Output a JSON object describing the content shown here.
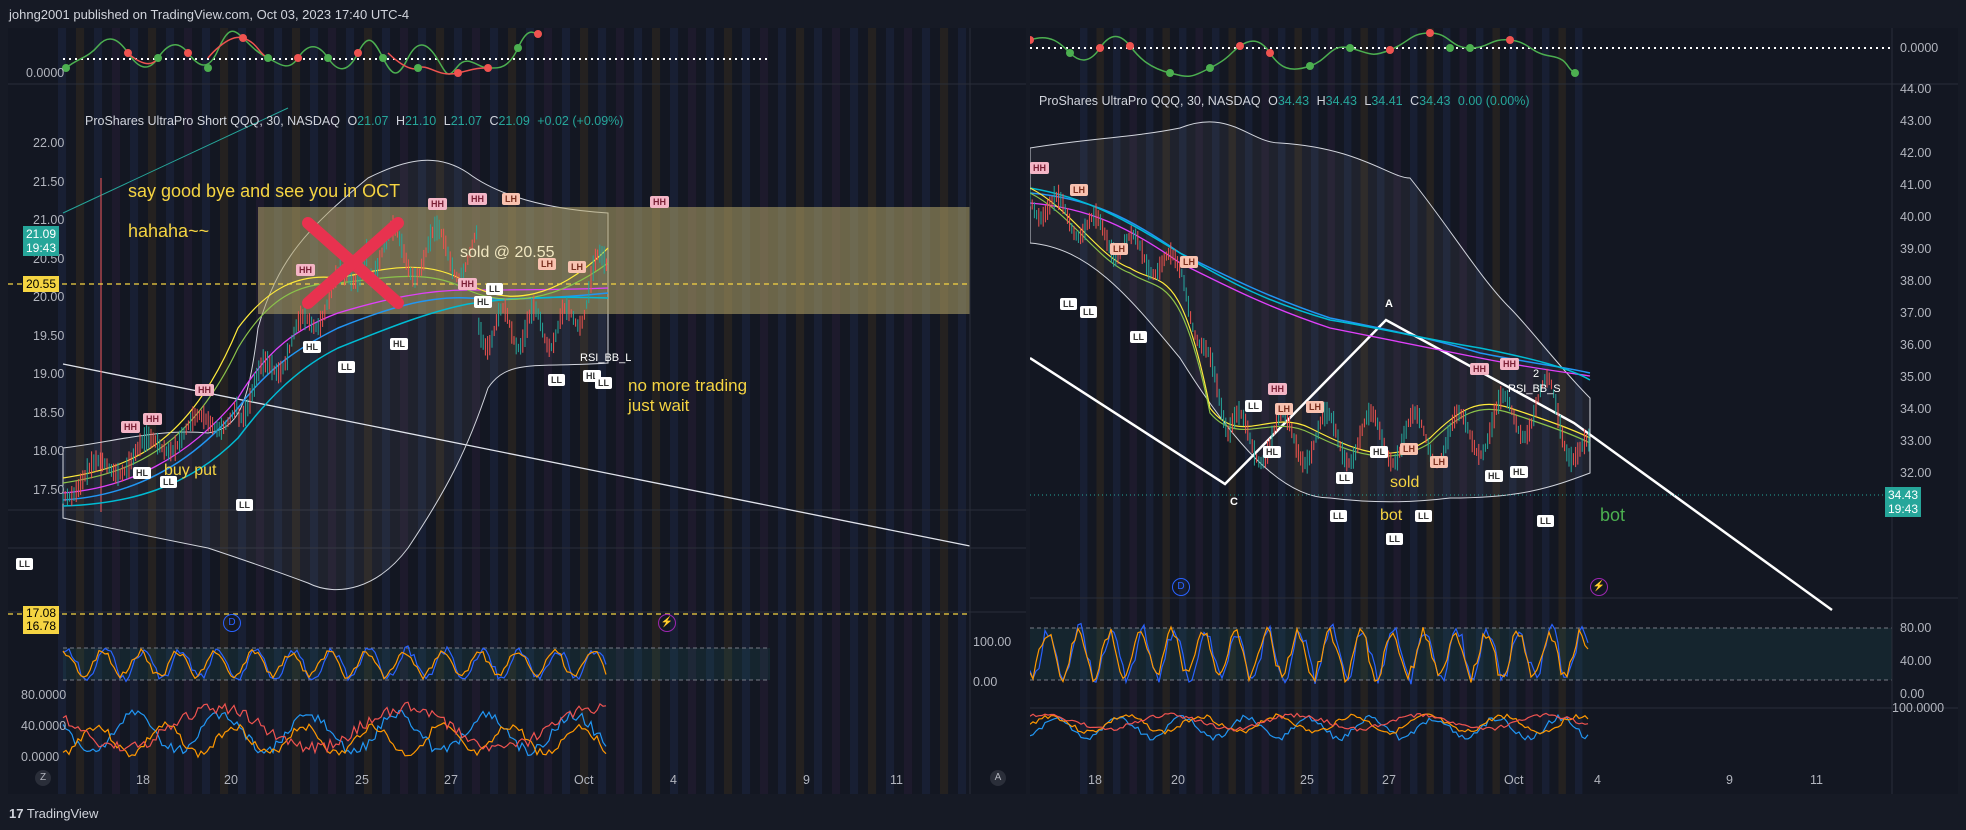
{
  "header": {
    "published": "johng2001 published on TradingView.com, Oct 03, 2023 17:40 UTC-4"
  },
  "footer": {
    "brand": "TradingView",
    "logo_glyph": "17"
  },
  "left": {
    "legend": {
      "name": "ProShares UltraPro Short QQQ, 30, NASDAQ",
      "o_k": "O",
      "o": "21.07",
      "h_k": "H",
      "h": "21.10",
      "l_k": "L",
      "l": "21.07",
      "c_k": "C",
      "c": "21.09",
      "chg": "+0.02 (+0.09%)"
    },
    "osc_zero": "0.0000",
    "price_ticks": [
      "22.00",
      "21.50",
      "21.00",
      "20.50",
      "20.00",
      "19.50",
      "19.00",
      "18.50",
      "18.00",
      "17.50"
    ],
    "last_price": "21.09",
    "last_time": "19:43",
    "line_label": "20.55",
    "low_label_1": "17.08",
    "low_label_2": "16.78",
    "stoch_ticks": [
      "100.00",
      "0.00"
    ],
    "rsi_ticks": [
      "80.0000",
      "40.0000",
      "0.0000"
    ],
    "x_labels": [
      "18",
      "20",
      "25",
      "27",
      "Oct",
      "4",
      "9",
      "11"
    ],
    "notes": {
      "goodbye": "say good bye and see you in OCT",
      "hahaha": "hahaha~~",
      "sold": "sold @ 20.55",
      "buy_put": "buy put",
      "no_more": "no more trading",
      "just_wait": "just wait",
      "rsi_bb": "RSI_BB_L"
    },
    "icons": {
      "z": "Z",
      "a": "A",
      "d": "D",
      "bolt": "⚡"
    },
    "pivots": {
      "hh": "HH",
      "lh": "LH",
      "ll": "LL",
      "hl": "HL"
    }
  },
  "right": {
    "legend": {
      "name": "ProShares UltraPro QQQ, 30, NASDAQ",
      "o_k": "O",
      "o": "34.43",
      "h_k": "H",
      "h": "34.43",
      "l_k": "L",
      "l": "34.41",
      "c_k": "C",
      "c": "34.43",
      "chg": "0.00 (0.00%)"
    },
    "osc_zero": "0.0000",
    "price_ticks": [
      "44.00",
      "43.00",
      "42.00",
      "41.00",
      "40.00",
      "39.00",
      "38.00",
      "37.00",
      "36.00",
      "35.00",
      "34.00",
      "33.00",
      "32.00"
    ],
    "last_price": "34.43",
    "last_time": "19:43",
    "stoch_ticks": [
      "80.00",
      "40.00",
      "0.00"
    ],
    "rsi_tick": "100.0000",
    "x_labels": [
      "18",
      "20",
      "25",
      "27",
      "Oct",
      "4",
      "9",
      "11"
    ],
    "notes": {
      "sold": "sold",
      "bot": "bot",
      "bot2": "bot",
      "rsi_bb": "RSI_BB_S",
      "a": "A",
      "c": "C",
      "two": "2"
    },
    "icons": {
      "d": "D",
      "bolt": "⚡"
    }
  },
  "colors": {
    "up": "#26a69a",
    "down": "#ef5350",
    "yellow": "#f5d442",
    "bg": "#131722"
  }
}
